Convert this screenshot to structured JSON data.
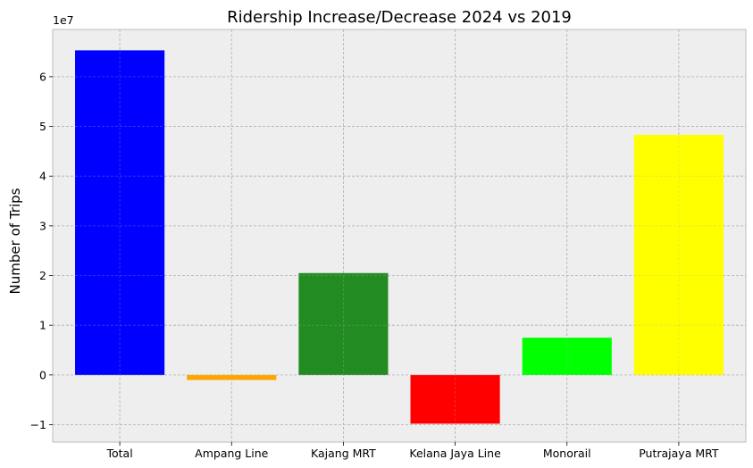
{
  "chart_data": {
    "type": "bar",
    "title": "Ridership Increase/Decrease 2024 vs 2019",
    "xlabel": "",
    "ylabel": "Number of Trips",
    "y_offset_label": "1e7",
    "categories": [
      "Total",
      "Ampang Line",
      "Kajang MRT",
      "Kelana Jaya Line",
      "Monorail",
      "Putrajaya MRT"
    ],
    "values": [
      65300000,
      -1000000,
      20500000,
      -9800000,
      7500000,
      48300000
    ],
    "colors": [
      "#0000ff",
      "#ffa500",
      "#228b22",
      "#ff0000",
      "#00ff00",
      "#ffff00"
    ],
    "yticks": [
      -1,
      0,
      1,
      2,
      3,
      4,
      5,
      6
    ],
    "ytick_labels": [
      "−1",
      "0",
      "1",
      "2",
      "3",
      "4",
      "5",
      "6"
    ],
    "ylim": [
      -13500000,
      69500000
    ],
    "grid": true
  }
}
